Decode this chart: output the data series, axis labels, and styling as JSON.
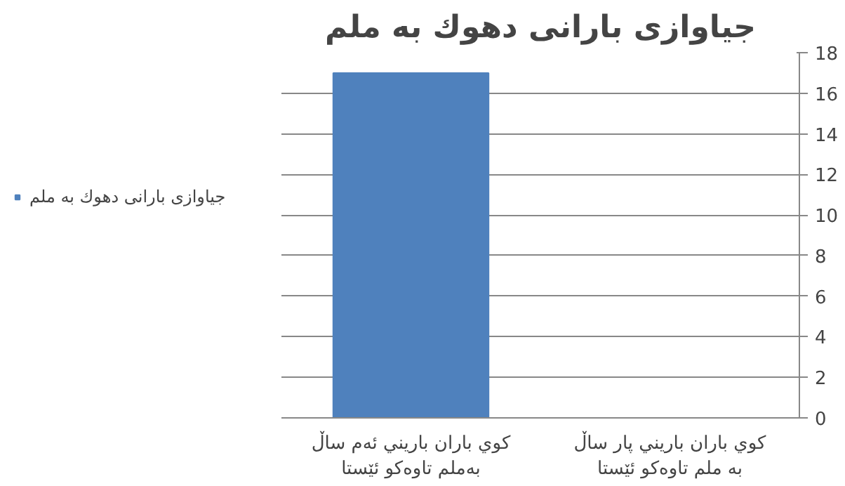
{
  "chart_data": {
    "type": "bar",
    "title": "جياوازى بارانى دهوك به ملم",
    "categories": [
      "كوي باران باريني ئەم ساڵ بەملم تاوەكو ئێستا",
      "كوي باران باريني پار ساڵ به ملم تاوەكو ئێستا"
    ],
    "series": [
      {
        "name": "جياوازى بارانى دهوك به ملم",
        "color": "#4f81bd",
        "values": [
          17,
          0
        ]
      }
    ],
    "ylim": [
      0,
      18
    ],
    "yticks": [
      0,
      2,
      4,
      6,
      8,
      10,
      12,
      14,
      16,
      18
    ],
    "grid": "y",
    "legend": "left"
  }
}
